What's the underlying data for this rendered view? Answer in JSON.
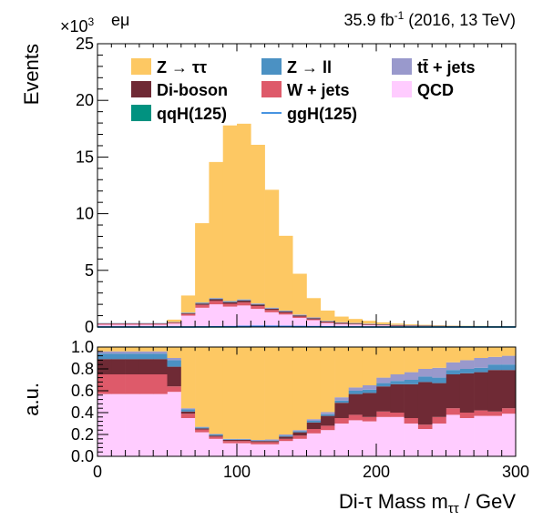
{
  "header": {
    "exponent_prefix": "×10",
    "exponent_power": "3",
    "channel": "eμ",
    "lumi_value": "35.9 fb",
    "lumi_power": "-1",
    "lumi_rest": " (2016, 13 TeV)"
  },
  "colors": {
    "ztt": "#fdc863",
    "zll": "#4b91c3",
    "ttbar": "#9999cc",
    "diboson": "#6f2a35",
    "wjets": "#de5a6a",
    "qcd": "#ffccff",
    "qqh": "#019280",
    "ggh": "#0b70d7"
  },
  "chart_data": [
    {
      "type": "bar",
      "stacked": true,
      "ylabel": "Events",
      "ylim": [
        0,
        25
      ],
      "yticks": [
        "0",
        "5",
        "10",
        "15",
        "20",
        "25"
      ],
      "xlim": [
        0,
        300
      ],
      "bin_edges": [
        0,
        10,
        20,
        30,
        40,
        50,
        60,
        70,
        80,
        90,
        100,
        110,
        120,
        130,
        140,
        150,
        160,
        170,
        180,
        190,
        200,
        210,
        220,
        230,
        240,
        250,
        260,
        270,
        280,
        290,
        300
      ],
      "series": [
        {
          "name": "QCD",
          "key": "qcd",
          "values": [
            0.2,
            0.2,
            0.2,
            0.2,
            0.2,
            0.3,
            1.0,
            1.7,
            2.0,
            1.8,
            1.9,
            1.6,
            1.3,
            1.1,
            0.8,
            0.6,
            0.35,
            0.25,
            0.22,
            0.18,
            0.14,
            0.1,
            0.09,
            0.07,
            0.06,
            0.05,
            0.04,
            0.04,
            0.03,
            0.03
          ]
        },
        {
          "name": "W + jets",
          "key": "wjets",
          "values": [
            0.08,
            0.08,
            0.08,
            0.08,
            0.08,
            0.08,
            0.15,
            0.25,
            0.3,
            0.25,
            0.28,
            0.25,
            0.2,
            0.15,
            0.12,
            0.08,
            0.06,
            0.04,
            0.03,
            0.02,
            0.02,
            0.015,
            0.015,
            0.01,
            0.01,
            0.008,
            0.007,
            0.006,
            0.005,
            0.004
          ]
        },
        {
          "name": "Di-boson",
          "key": "diboson",
          "values": [
            0.03,
            0.03,
            0.03,
            0.03,
            0.03,
            0.04,
            0.07,
            0.12,
            0.15,
            0.14,
            0.15,
            0.13,
            0.12,
            0.11,
            0.1,
            0.09,
            0.08,
            0.07,
            0.06,
            0.055,
            0.05,
            0.045,
            0.04,
            0.035,
            0.03,
            0.025,
            0.02,
            0.02,
            0.018,
            0.015
          ]
        },
        {
          "name": "Z → ll",
          "key": "zll",
          "values": [
            0.03,
            0.03,
            0.03,
            0.03,
            0.03,
            0.02,
            0.04,
            0.06,
            0.07,
            0.06,
            0.06,
            0.05,
            0.04,
            0.04,
            0.03,
            0.03,
            0.02,
            0.02,
            0.015,
            0.012,
            0.01,
            0.008,
            0.007,
            0.006,
            0.005,
            0.004,
            0.003,
            0.003,
            0.003,
            0.002
          ]
        },
        {
          "name": "tt̄ + jets",
          "key": "ttbar",
          "values": [
            0.01,
            0.01,
            0.01,
            0.01,
            0.01,
            0.01,
            0.02,
            0.03,
            0.04,
            0.04,
            0.05,
            0.05,
            0.05,
            0.05,
            0.05,
            0.05,
            0.04,
            0.04,
            0.035,
            0.03,
            0.03,
            0.025,
            0.02,
            0.02,
            0.018,
            0.015,
            0.013,
            0.011,
            0.01,
            0.009
          ]
        },
        {
          "name": "Z → ττ",
          "key": "ztt",
          "values": [
            0.0,
            0.0,
            0.0,
            0.0,
            0.0,
            0.2,
            1.5,
            7.0,
            12.0,
            15.5,
            15.5,
            14.0,
            10.4,
            6.6,
            3.6,
            1.7,
            0.9,
            0.5,
            0.35,
            0.25,
            0.16,
            0.11,
            0.07,
            0.05,
            0.04,
            0.03,
            0.02,
            0.015,
            0.012,
            0.01
          ]
        }
      ],
      "lines": [
        {
          "name": "qqH(125)",
          "key": "qqh",
          "values": [
            0,
            0,
            0,
            0,
            0,
            0,
            0,
            0,
            0,
            0,
            0.01,
            0.02,
            0.02,
            0.02,
            0.01,
            0.01,
            0,
            0,
            0,
            0,
            0,
            0,
            0,
            0,
            0,
            0,
            0,
            0,
            0,
            0
          ]
        },
        {
          "name": "ggH(125)",
          "key": "ggh",
          "values": [
            0,
            0,
            0,
            0,
            0,
            0,
            0,
            0.01,
            0.02,
            0.03,
            0.05,
            0.06,
            0.06,
            0.05,
            0.04,
            0.03,
            0.02,
            0.01,
            0.01,
            0,
            0,
            0,
            0,
            0,
            0,
            0,
            0,
            0,
            0,
            0
          ]
        }
      ],
      "legend": [
        {
          "label": "Z → ττ",
          "key": "ztt",
          "style": "box"
        },
        {
          "label": "Z → ll",
          "key": "zll",
          "style": "box"
        },
        {
          "label": "tt̄ + jets",
          "key": "ttbar",
          "style": "box"
        },
        {
          "label": "Di-boson",
          "key": "diboson",
          "style": "box"
        },
        {
          "label": "W + jets",
          "key": "wjets",
          "style": "box"
        },
        {
          "label": "QCD",
          "key": "qcd",
          "style": "box"
        },
        {
          "label": "qqH(125)",
          "key": "qqh",
          "style": "box"
        },
        {
          "label": "ggH(125)",
          "key": "ggh",
          "style": "line"
        }
      ],
      "legend_position": "top"
    },
    {
      "type": "bar",
      "stacked": true,
      "normalized": true,
      "ylabel": "a.u.",
      "xlabel": "Di-τ Mass m",
      "xlabel_sub": "ττ",
      "xlabel_unit": " / GeV",
      "ylim": [
        0,
        1.0
      ],
      "yticks": [
        "0.0",
        "0.2",
        "0.4",
        "0.6",
        "0.8",
        "1.0"
      ],
      "xticks": [
        "0",
        "100",
        "200",
        "300"
      ],
      "xlim": [
        0,
        300
      ],
      "bin_edges": [
        0,
        10,
        20,
        30,
        40,
        50,
        60,
        70,
        80,
        90,
        100,
        110,
        120,
        130,
        140,
        150,
        160,
        170,
        180,
        190,
        200,
        210,
        220,
        230,
        240,
        250,
        260,
        270,
        280,
        290,
        300
      ],
      "series": [
        {
          "name": "QCD",
          "key": "qcd",
          "values": [
            0.57,
            0.57,
            0.57,
            0.57,
            0.57,
            0.59,
            0.35,
            0.22,
            0.16,
            0.12,
            0.12,
            0.11,
            0.11,
            0.14,
            0.16,
            0.21,
            0.24,
            0.3,
            0.33,
            0.32,
            0.36,
            0.36,
            0.3,
            0.25,
            0.3,
            0.38,
            0.35,
            0.37,
            0.37,
            0.39
          ]
        },
        {
          "name": "W + jets",
          "key": "wjets",
          "values": [
            0.18,
            0.18,
            0.18,
            0.18,
            0.18,
            0.05,
            0.04,
            0.025,
            0.02,
            0.02,
            0.02,
            0.02,
            0.02,
            0.02,
            0.03,
            0.04,
            0.04,
            0.05,
            0.05,
            0.04,
            0.05,
            0.04,
            0.05,
            0.04,
            0.06,
            0.06,
            0.05,
            0.05,
            0.04,
            0.05
          ]
        },
        {
          "name": "Di-boson",
          "key": "diboson",
          "values": [
            0.14,
            0.14,
            0.14,
            0.14,
            0.14,
            0.18,
            0.02,
            0.01,
            0.01,
            0.01,
            0.01,
            0.01,
            0.01,
            0.02,
            0.03,
            0.06,
            0.09,
            0.14,
            0.19,
            0.22,
            0.23,
            0.26,
            0.31,
            0.39,
            0.31,
            0.31,
            0.36,
            0.35,
            0.38,
            0.35
          ]
        },
        {
          "name": "Z → ll",
          "key": "zll",
          "values": [
            0.05,
            0.05,
            0.05,
            0.05,
            0.05,
            0.06,
            0.02,
            0.01,
            0.01,
            0.005,
            0.005,
            0.005,
            0.005,
            0.01,
            0.01,
            0.015,
            0.015,
            0.02,
            0.03,
            0.03,
            0.03,
            0.03,
            0.04,
            0.05,
            0.05,
            0.04,
            0.04,
            0.04,
            0.05,
            0.05
          ]
        },
        {
          "name": "tt̄ + jets",
          "key": "ttbar",
          "values": [
            0.02,
            0.02,
            0.02,
            0.02,
            0.02,
            0.02,
            0.01,
            0.005,
            0.005,
            0.005,
            0.005,
            0.005,
            0.01,
            0.01,
            0.01,
            0.015,
            0.02,
            0.03,
            0.03,
            0.04,
            0.05,
            0.06,
            0.07,
            0.07,
            0.09,
            0.07,
            0.08,
            0.09,
            0.07,
            0.08
          ]
        },
        {
          "name": "Z → ττ",
          "key": "ztt",
          "values": [
            0.04,
            0.04,
            0.04,
            0.04,
            0.04,
            0.1,
            0.56,
            0.73,
            0.8,
            0.84,
            0.84,
            0.85,
            0.85,
            0.8,
            0.76,
            0.66,
            0.59,
            0.46,
            0.37,
            0.35,
            0.28,
            0.25,
            0.23,
            0.2,
            0.19,
            0.14,
            0.12,
            0.1,
            0.09,
            0.08
          ]
        }
      ]
    }
  ]
}
